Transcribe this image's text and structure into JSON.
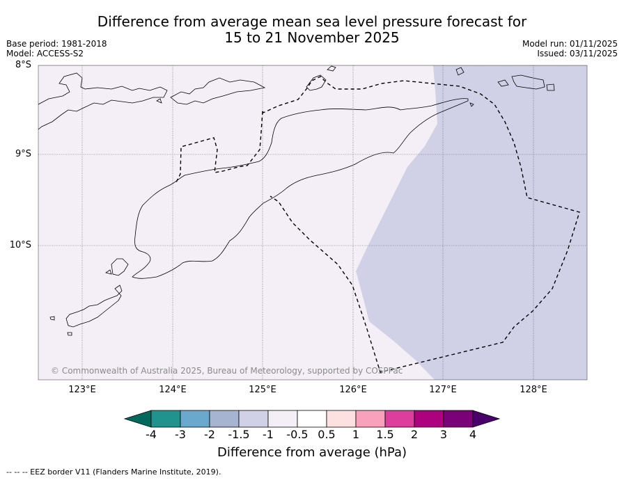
{
  "title": {
    "line1": "Difference from average mean sea level pressure forecast for",
    "line2": "15 to 21 November 2025"
  },
  "meta": {
    "base_period": "Base period: 1981-2018",
    "model": "Model: ACCESS-S2",
    "model_run": "Model run: 01/11/2025",
    "issued": "Issued: 03/11/2025"
  },
  "map": {
    "lat_labels": [
      "8°S",
      "9°S",
      "10°S"
    ],
    "lon_labels": [
      "123°E",
      "124°E",
      "125°E",
      "126°E",
      "127°E",
      "128°E"
    ],
    "copyright": "© Commonwealth of Australia 2025, Bureau of Meteorology, supported by COSPPac",
    "colors": {
      "weak_negative": "#f4eef6",
      "moderate_negative": "#d0d1e6",
      "coast": "#000000",
      "eez": "#000000",
      "grid": "#555555"
    }
  },
  "colorbar": {
    "label": "Difference from average (hPa)",
    "ticks": [
      "-4",
      "-3",
      "-2",
      "-1.5",
      "-1",
      "-0.5",
      "0.5",
      "1",
      "1.5",
      "2",
      "3",
      "4"
    ],
    "colors": [
      "#00695c",
      "#21938f",
      "#6aa8cd",
      "#a7b4d1",
      "#d0d1e6",
      "#f4eef6",
      "#ffffff",
      "#fde1e1",
      "#f9a0bd",
      "#dd3d9c",
      "#ae0180",
      "#7a0177",
      "#49006a"
    ]
  },
  "footer": "--  --  -- EEZ border V11 (Flanders Marine Institute, 2019)."
}
